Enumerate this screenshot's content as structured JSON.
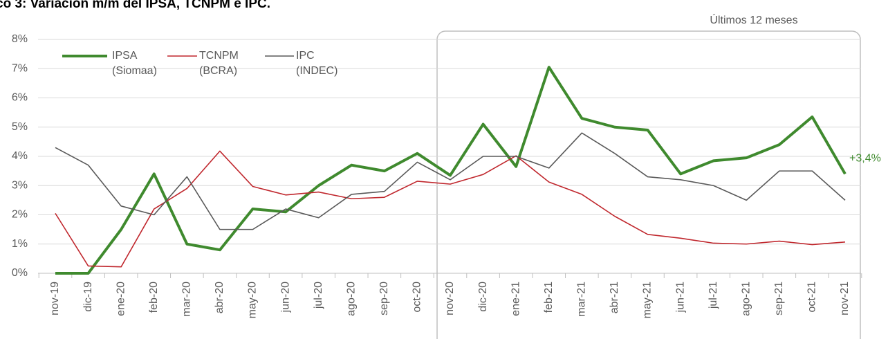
{
  "chart_data": {
    "type": "line",
    "title": "co 3: Variación m/m del IPSA, TCNPM e IPC.",
    "annotations": [
      "Últimos 12 meses"
    ],
    "categories": [
      "nov-19",
      "dic-19",
      "ene-20",
      "feb-20",
      "mar-20",
      "abr-20",
      "may-20",
      "jun-20",
      "jul-20",
      "ago-20",
      "sep-20",
      "oct-20",
      "nov-20",
      "dic-20",
      "ene-21",
      "feb-21",
      "mar-21",
      "abr-21",
      "may-21",
      "jun-21",
      "jul-21",
      "ago-21",
      "sep-21",
      "oct-21",
      "nov-21"
    ],
    "series": [
      {
        "name": "IPSA (Siomaa)",
        "color": "#3f8a2e",
        "width": 4,
        "values": [
          0,
          0,
          1.5,
          3.4,
          1.0,
          0.8,
          2.2,
          2.1,
          3.0,
          3.7,
          3.5,
          4.1,
          3.35,
          5.1,
          3.65,
          7.05,
          5.3,
          5.0,
          4.9,
          3.4,
          3.85,
          3.95,
          4.4,
          5.35,
          3.4
        ],
        "value_labels": [
          null,
          null,
          null,
          null,
          null,
          null,
          null,
          null,
          null,
          null,
          null,
          null,
          null,
          null,
          null,
          null,
          null,
          null,
          null,
          null,
          null,
          null,
          null,
          null,
          "+3,4%"
        ]
      },
      {
        "name": "TCNPM (BCRA)",
        "color": "#c0272d",
        "width": 1.6,
        "values": [
          2.05,
          0.25,
          0.22,
          2.2,
          2.9,
          4.18,
          2.97,
          2.68,
          2.78,
          2.55,
          2.6,
          3.15,
          3.05,
          3.38,
          4.02,
          3.12,
          2.7,
          1.95,
          1.33,
          1.2,
          1.03,
          1.0,
          1.1,
          0.98,
          1.07
        ]
      },
      {
        "name": "IPC (INDEC)",
        "color": "#595959",
        "width": 1.6,
        "values": [
          4.3,
          3.7,
          2.3,
          2.0,
          3.3,
          1.5,
          1.5,
          2.2,
          1.9,
          2.7,
          2.8,
          3.8,
          3.2,
          4.0,
          4.0,
          3.6,
          4.8,
          4.1,
          3.3,
          3.2,
          3.0,
          2.5,
          3.5,
          3.5,
          2.5
        ]
      }
    ],
    "ylim": [
      0,
      8
    ],
    "yticks": [
      {
        "value": 0,
        "label": "0%"
      },
      {
        "value": 1,
        "label": "1%"
      },
      {
        "value": 2,
        "label": "2%"
      },
      {
        "value": 3,
        "label": "3%"
      },
      {
        "value": 4,
        "label": "4%"
      },
      {
        "value": 5,
        "label": "5%"
      },
      {
        "value": 6,
        "label": "6%"
      },
      {
        "value": 7,
        "label": "7%"
      },
      {
        "value": 8,
        "label": "8%"
      }
    ],
    "grid": true
  }
}
